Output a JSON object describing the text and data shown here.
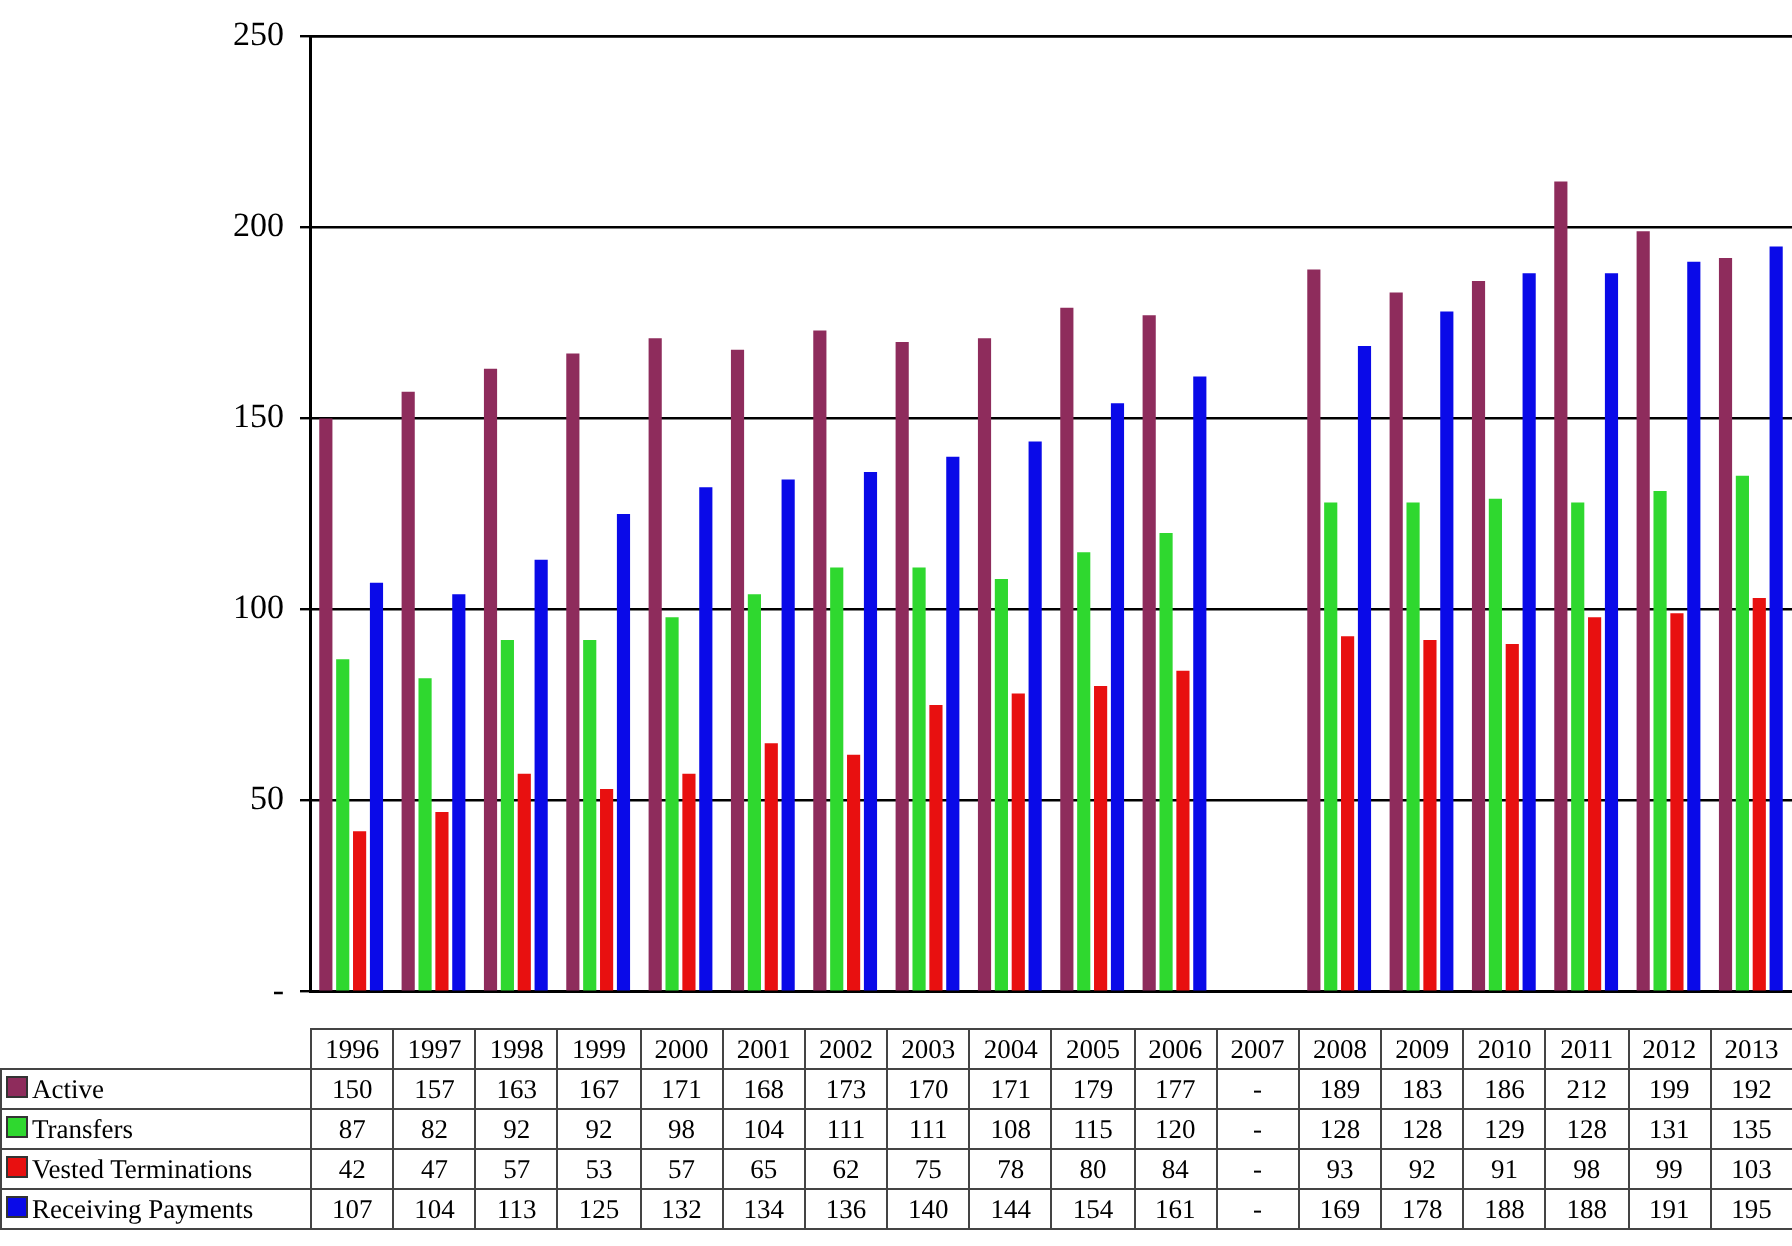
{
  "chart_data": {
    "type": "bar",
    "categories": [
      "1996",
      "1997",
      "1998",
      "1999",
      "2000",
      "2001",
      "2002",
      "2003",
      "2004",
      "2005",
      "2006",
      "2007",
      "2008",
      "2009",
      "2010",
      "2011",
      "2012",
      "2013"
    ],
    "ylim": [
      0,
      250
    ],
    "yticks": [
      {
        "value": 0,
        "label": "-"
      },
      50,
      100,
      150,
      200,
      250
    ],
    "grid": "y",
    "legend": "bottom",
    "series": [
      {
        "name": "Active",
        "color": "#8e2c5c",
        "values": [
          150,
          157,
          163,
          167,
          171,
          168,
          173,
          170,
          171,
          179,
          177,
          null,
          189,
          183,
          186,
          212,
          199,
          192
        ],
        "value_labels": [
          "150",
          "157",
          "163",
          "167",
          "171",
          "168",
          "173",
          "170",
          "171",
          "179",
          "177",
          "-",
          "189",
          "183",
          "186",
          "212",
          "199",
          "192"
        ]
      },
      {
        "name": "Transfers",
        "color": "#2fd82f",
        "values": [
          87,
          82,
          92,
          92,
          98,
          104,
          111,
          111,
          108,
          115,
          120,
          null,
          128,
          128,
          129,
          128,
          131,
          135
        ],
        "value_labels": [
          "87",
          "82",
          "92",
          "92",
          "98",
          "104",
          "111",
          "111",
          "108",
          "115",
          "120",
          "-",
          "128",
          "128",
          "129",
          "128",
          "131",
          "135"
        ]
      },
      {
        "name": "Vested Terminations",
        "color": "#e81010",
        "values": [
          42,
          47,
          57,
          53,
          57,
          65,
          62,
          75,
          78,
          80,
          84,
          null,
          93,
          92,
          91,
          98,
          99,
          103
        ],
        "value_labels": [
          "42",
          "47",
          "57",
          "53",
          "57",
          "65",
          "62",
          "75",
          "78",
          "80",
          "84",
          "-",
          "93",
          "92",
          "91",
          "98",
          "99",
          "103"
        ]
      },
      {
        "name": "Receiving Payments",
        "color": "#0a0ae8",
        "values": [
          107,
          104,
          113,
          125,
          132,
          134,
          136,
          140,
          144,
          154,
          161,
          null,
          169,
          178,
          188,
          188,
          191,
          195
        ],
        "value_labels": [
          "107",
          "104",
          "113",
          "125",
          "132",
          "134",
          "136",
          "140",
          "144",
          "154",
          "161",
          "-",
          "169",
          "178",
          "188",
          "188",
          "191",
          "195"
        ]
      }
    ]
  }
}
